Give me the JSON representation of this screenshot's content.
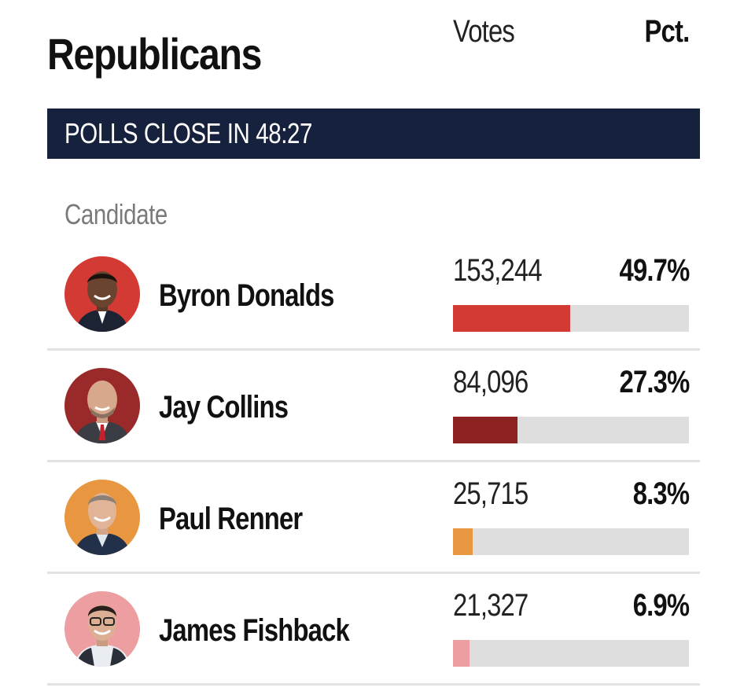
{
  "party_title": "Republicans",
  "banner": {
    "text": "POLLS CLOSE IN 48:27",
    "color": "#16223d"
  },
  "columns": {
    "candidate": "Candidate",
    "votes": "Votes",
    "pct": "Pct."
  },
  "candidates": [
    {
      "name": "Byron Donalds",
      "votes": "153,244",
      "pct": "49.7%",
      "share": 0.497,
      "bar_color": "#d23a33",
      "avatar_bg": "#d23a33",
      "avatar_icon": "candidate-photo"
    },
    {
      "name": "Jay Collins",
      "votes": "84,096",
      "pct": "27.3%",
      "share": 0.273,
      "bar_color": "#8c2222",
      "avatar_bg": "#9a2a2a",
      "avatar_icon": "candidate-photo"
    },
    {
      "name": "Paul Renner",
      "votes": "25,715",
      "pct": "8.3%",
      "share": 0.083,
      "bar_color": "#e8963f",
      "avatar_bg": "#e8963f",
      "avatar_icon": "candidate-photo"
    },
    {
      "name": "James Fishback",
      "votes": "21,327",
      "pct": "6.9%",
      "share": 0.069,
      "bar_color": "#ec9ea0",
      "avatar_bg": "#ec9ea0",
      "avatar_icon": "candidate-photo"
    }
  ]
}
